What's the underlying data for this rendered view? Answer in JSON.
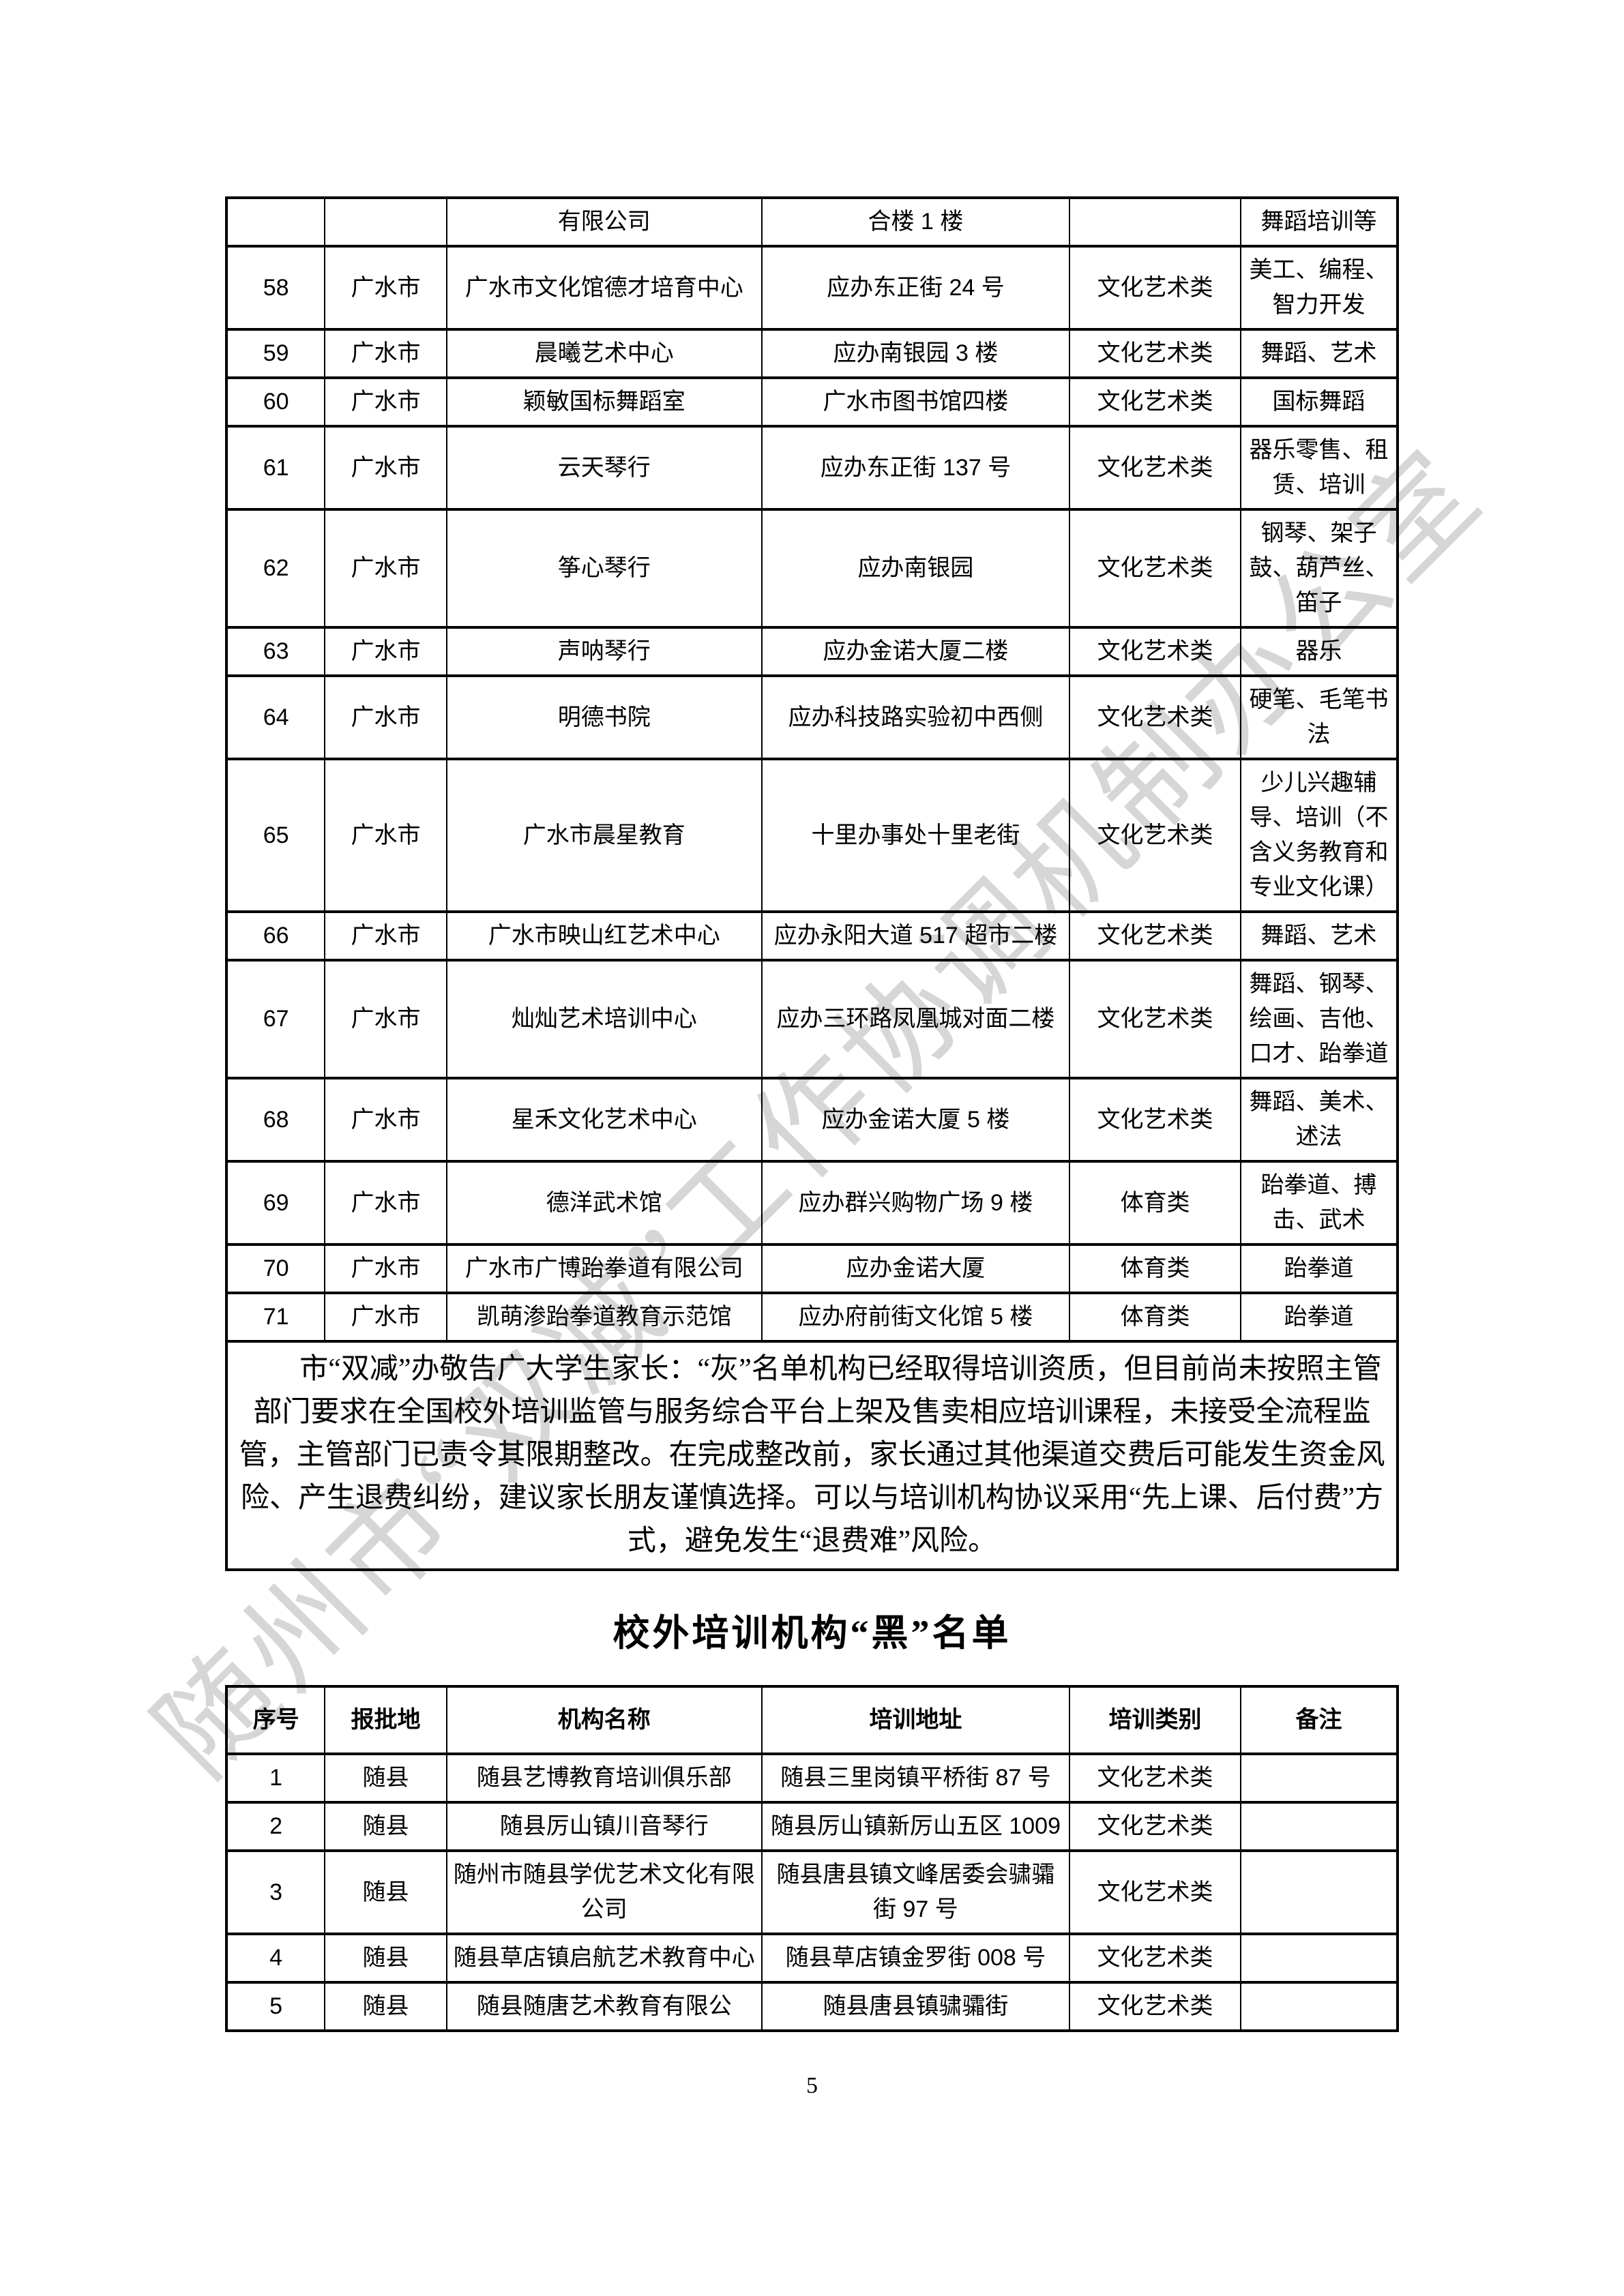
{
  "page": {
    "number": "5"
  },
  "watermark": {
    "text": "随州市“双减”工作协调机制办公室",
    "color": "#c9c9c9"
  },
  "grey_list": {
    "rows": [
      [
        "",
        "",
        "有限公司",
        "合楼 1 楼",
        "",
        "舞蹈培训等"
      ],
      [
        "58",
        "广水市",
        "广水市文化馆德才培育中心",
        "应办东正街 24 号",
        "文化艺术类",
        "美工、编程、智力开发"
      ],
      [
        "59",
        "广水市",
        "晨曦艺术中心",
        "应办南银园 3 楼",
        "文化艺术类",
        "舞蹈、艺术"
      ],
      [
        "60",
        "广水市",
        "颖敏国标舞蹈室",
        "广水市图书馆四楼",
        "文化艺术类",
        "国标舞蹈"
      ],
      [
        "61",
        "广水市",
        "云天琴行",
        "应办东正街 137 号",
        "文化艺术类",
        "器乐零售、租赁、培训"
      ],
      [
        "62",
        "广水市",
        "筝心琴行",
        "应办南银园",
        "文化艺术类",
        "钢琴、架子鼓、葫芦丝、笛子"
      ],
      [
        "63",
        "广水市",
        "声呐琴行",
        "应办金诺大厦二楼",
        "文化艺术类",
        "器乐"
      ],
      [
        "64",
        "广水市",
        "明德书院",
        "应办科技路实验初中西侧",
        "文化艺术类",
        "硬笔、毛笔书法"
      ],
      [
        "65",
        "广水市",
        "广水市晨星教育",
        "十里办事处十里老街",
        "文化艺术类",
        "少儿兴趣辅导、培训（不含义务教育和专业文化课）"
      ],
      [
        "66",
        "广水市",
        "广水市映山红艺术中心",
        "应办永阳大道 517 超市二楼",
        "文化艺术类",
        "舞蹈、艺术"
      ],
      [
        "67",
        "广水市",
        "灿灿艺术培训中心",
        "应办三环路凤凰城对面二楼",
        "文化艺术类",
        "舞蹈、钢琴、绘画、吉他、口才、跆拳道"
      ],
      [
        "68",
        "广水市",
        "星禾文化艺术中心",
        "应办金诺大厦 5 楼",
        "文化艺术类",
        "舞蹈、美术、述法"
      ],
      [
        "69",
        "广水市",
        "德洋武术馆",
        "应办群兴购物广场 9 楼",
        "体育类",
        "跆拳道、搏击、武术"
      ],
      [
        "70",
        "广水市",
        "广水市广博跆拳道有限公司",
        "应办金诺大厦",
        "体育类",
        "跆拳道"
      ],
      [
        "71",
        "广水市",
        "凯萌渗跆拳道教育示范馆",
        "应办府前街文化馆 5 楼",
        "体育类",
        "跆拳道"
      ]
    ],
    "notice": "市“双减”办敬告广大学生家长：“灰”名单机构已经取得培训资质，但目前尚未按照主管部门要求在全国校外培训监管与服务综合平台上架及售卖相应培训课程，未接受全流程监管，主管部门已责令其限期整改。在完成整改前，家长通过其他渠道交费后可能发生资金风险、产生退费纠纷，建议家长朋友谨慎选择。可以与培训机构协议采用“先上课、后付费”方式，避免发生“退费难”风险。"
  },
  "black_list": {
    "title": "校外培训机构“黑”名单",
    "headers": [
      "序号",
      "报批地",
      "机构名称",
      "培训地址",
      "培训类别",
      "备注"
    ],
    "rows": [
      [
        "1",
        "随县",
        "随县艺博教育培训俱乐部",
        "随县三里岗镇平桥街 87 号",
        "文化艺术类",
        ""
      ],
      [
        "2",
        "随县",
        "随县厉山镇川音琴行",
        "随县厉山镇新厉山五区 1009",
        "文化艺术类",
        ""
      ],
      [
        "3",
        "随县",
        "随州市随县学优艺术文化有限公司",
        "随县唐县镇文峰居委会骕骦街 97 号",
        "文化艺术类",
        ""
      ],
      [
        "4",
        "随县",
        "随县草店镇启航艺术教育中心",
        "随县草店镇金罗街 008 号",
        "文化艺术类",
        ""
      ],
      [
        "5",
        "随县",
        "随县随唐艺术教育有限公",
        "随县唐县镇骕骦街",
        "文化艺术类",
        ""
      ]
    ]
  }
}
